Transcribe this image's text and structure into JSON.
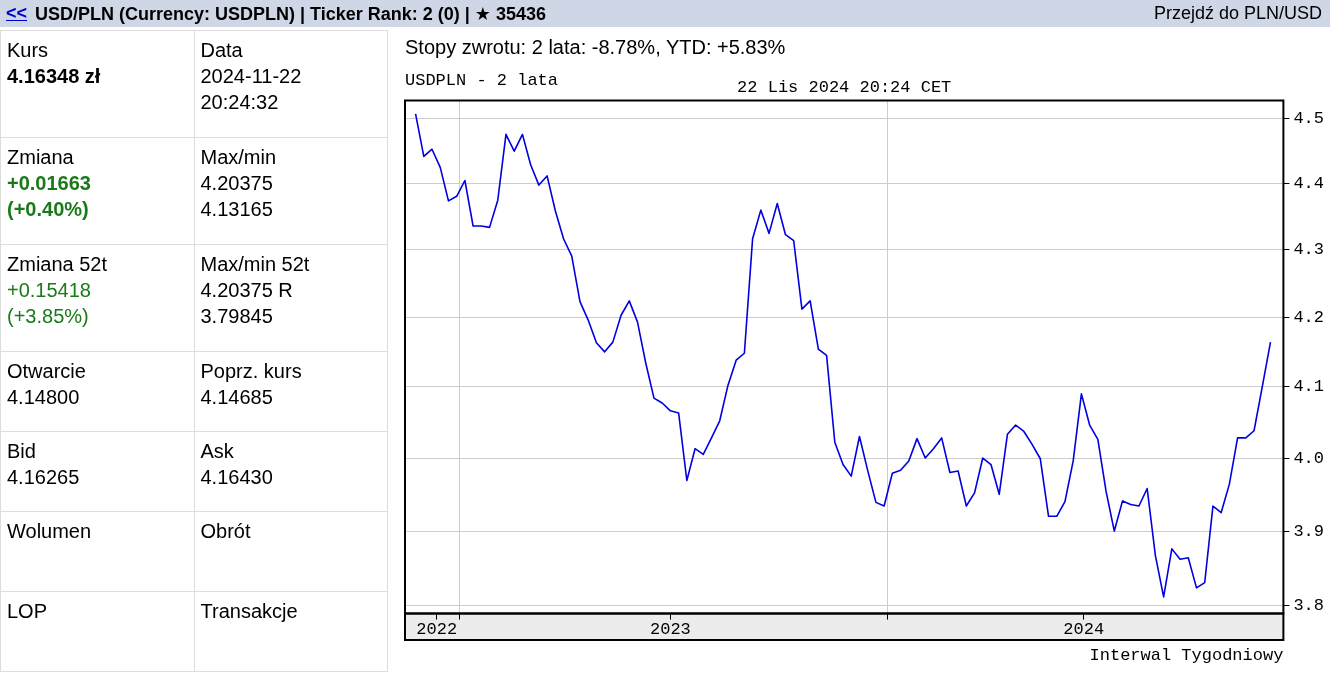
{
  "chart_data": [
    {
      "type": "other",
      "title": "USD/PLN (Currency: USDPLN) | Ticker Rank: 2 (0) | ★ 35436",
      "annotations": [
        "<<",
        "Przejdź do PLN/USD",
        "Kurs\n4.16348 zł",
        "Data\n2024-11-22\n20:24:32",
        "Zmiana\n+0.01663\n(+0.40%)",
        "Max/min\n4.20375\n4.13165",
        "Zmiana 52t\n+0.15418\n(+3.85%)",
        "Max/min 52t\n4.20375 R\n3.79845",
        "Otwarcie\n4.14800",
        "Poprz. kurs\n4.14685",
        "Bid\n4.16265",
        "Ask\n4.16430",
        "Wolumen",
        "Obrót",
        "LOP",
        "Transakcje"
      ]
    },
    {
      "type": "line",
      "title": "USDPLN - 2 lata",
      "subtitle": "Stopy zwrotu: 2 lata: -8.78%, YTD: +5.83%",
      "annotations": [
        "22 Lis 2024 20:24 CET",
        "Interwal Tygodniowy"
      ],
      "color": "#0000e0",
      "marker": "none",
      "log": true,
      "grid": true,
      "x": [
        "2022-11-25",
        "2022-12-02",
        "2022-12-09",
        "2022-12-16",
        "2022-12-23",
        "2022-12-30",
        "2023-01-06",
        "2023-01-13",
        "2023-01-20",
        "2023-01-27",
        "2023-02-03",
        "2023-02-10",
        "2023-02-17",
        "2023-02-24",
        "2023-03-03",
        "2023-03-10",
        "2023-03-17",
        "2023-03-24",
        "2023-03-31",
        "2023-04-07",
        "2023-04-14",
        "2023-04-21",
        "2023-04-28",
        "2023-05-05",
        "2023-05-12",
        "2023-05-19",
        "2023-05-26",
        "2023-06-02",
        "2023-06-09",
        "2023-06-16",
        "2023-06-23",
        "2023-06-30",
        "2023-07-07",
        "2023-07-14",
        "2023-07-21",
        "2023-07-28",
        "2023-08-04",
        "2023-08-11",
        "2023-08-18",
        "2023-08-25",
        "2023-09-01",
        "2023-09-08",
        "2023-09-15",
        "2023-09-22",
        "2023-09-29",
        "2023-10-06",
        "2023-10-13",
        "2023-10-20",
        "2023-10-27",
        "2023-11-03",
        "2023-11-10",
        "2023-11-17",
        "2023-11-24",
        "2023-12-01",
        "2023-12-08",
        "2023-12-15",
        "2023-12-22",
        "2023-12-29",
        "2024-01-05",
        "2024-01-12",
        "2024-01-19",
        "2024-01-26",
        "2024-02-02",
        "2024-02-09",
        "2024-02-16",
        "2024-02-23",
        "2024-03-01",
        "2024-03-08",
        "2024-03-15",
        "2024-03-22",
        "2024-03-29",
        "2024-04-05",
        "2024-04-12",
        "2024-04-19",
        "2024-04-26",
        "2024-05-03",
        "2024-05-10",
        "2024-05-17",
        "2024-05-24",
        "2024-05-31",
        "2024-06-07",
        "2024-06-14",
        "2024-06-21",
        "2024-06-28",
        "2024-07-05",
        "2024-07-12",
        "2024-07-19",
        "2024-07-26",
        "2024-08-02",
        "2024-08-09",
        "2024-08-16",
        "2024-08-23",
        "2024-08-30",
        "2024-09-06",
        "2024-09-13",
        "2024-09-20",
        "2024-09-27",
        "2024-10-04",
        "2024-10-11",
        "2024-10-18",
        "2024-10-25",
        "2024-11-01",
        "2024-11-08",
        "2024-11-15",
        "2024-11-22"
      ],
      "values": [
        4.507,
        4.441,
        4.452,
        4.424,
        4.373,
        4.38,
        4.404,
        4.335,
        4.335,
        4.333,
        4.374,
        4.475,
        4.449,
        4.475,
        4.428,
        4.397,
        4.411,
        4.358,
        4.316,
        4.29,
        4.223,
        4.196,
        4.163,
        4.15,
        4.164,
        4.203,
        4.224,
        4.193,
        4.134,
        4.084,
        4.077,
        4.066,
        4.063,
        3.969,
        4.013,
        4.005,
        4.028,
        4.052,
        4.102,
        4.138,
        4.148,
        4.316,
        4.359,
        4.324,
        4.369,
        4.322,
        4.313,
        4.212,
        4.224,
        4.154,
        4.145,
        4.022,
        3.991,
        3.975,
        4.03,
        3.983,
        3.939,
        3.934,
        3.979,
        3.983,
        3.996,
        4.027,
        4.0,
        4.013,
        4.028,
        3.98,
        3.982,
        3.934,
        3.952,
        4.0,
        3.991,
        3.95,
        4.033,
        4.046,
        4.037,
        4.019,
        3.999,
        3.92,
        3.92,
        3.94,
        3.996,
        4.09,
        4.046,
        4.026,
        3.954,
        3.9,
        3.941,
        3.936,
        3.934,
        3.958,
        3.867,
        3.812,
        3.876,
        3.862,
        3.864,
        3.824,
        3.831,
        3.934,
        3.925,
        3.964,
        4.028,
        4.028,
        4.038,
        4.1,
        4.164
      ],
      "xlim": [
        "2022-11-16",
        "2024-12-03"
      ],
      "xticks": [
        {
          "value": "2022-12-13",
          "label": "2022"
        },
        {
          "value": "2023-01-01",
          "label": null
        },
        {
          "value": "2023-06-30",
          "label": "2023"
        },
        {
          "value": "2024-01-01",
          "label": null
        },
        {
          "value": "2024-06-16",
          "label": "2024"
        }
      ],
      "ylim": [
        3.794,
        4.528
      ],
      "yticks": [
        3.8,
        3.9,
        {
          "value": 4,
          "label": "4.0"
        },
        4.1,
        4.2,
        4.3,
        4.4,
        4.5
      ]
    }
  ]
}
